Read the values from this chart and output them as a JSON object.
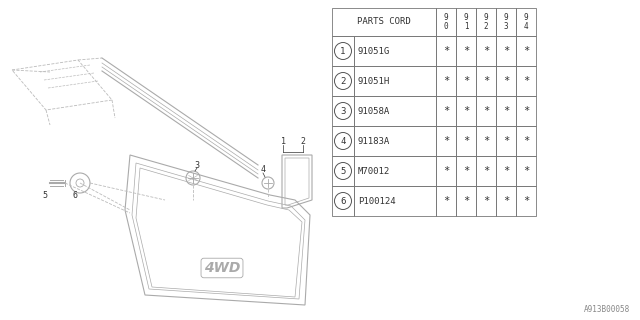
{
  "diagram_id": "A913B00058",
  "bg_color": "#ffffff",
  "lc": "#aaaaaa",
  "dark": "#444444",
  "table": {
    "rows": [
      [
        "1",
        "91051G"
      ],
      [
        "2",
        "91051H"
      ],
      [
        "3",
        "91058A"
      ],
      [
        "4",
        "91183A"
      ],
      [
        "5",
        "M70012"
      ],
      [
        "6",
        "P100124"
      ]
    ],
    "year_cols": [
      "9\n0",
      "9\n1",
      "9\n2",
      "9\n3",
      "9\n4"
    ]
  }
}
